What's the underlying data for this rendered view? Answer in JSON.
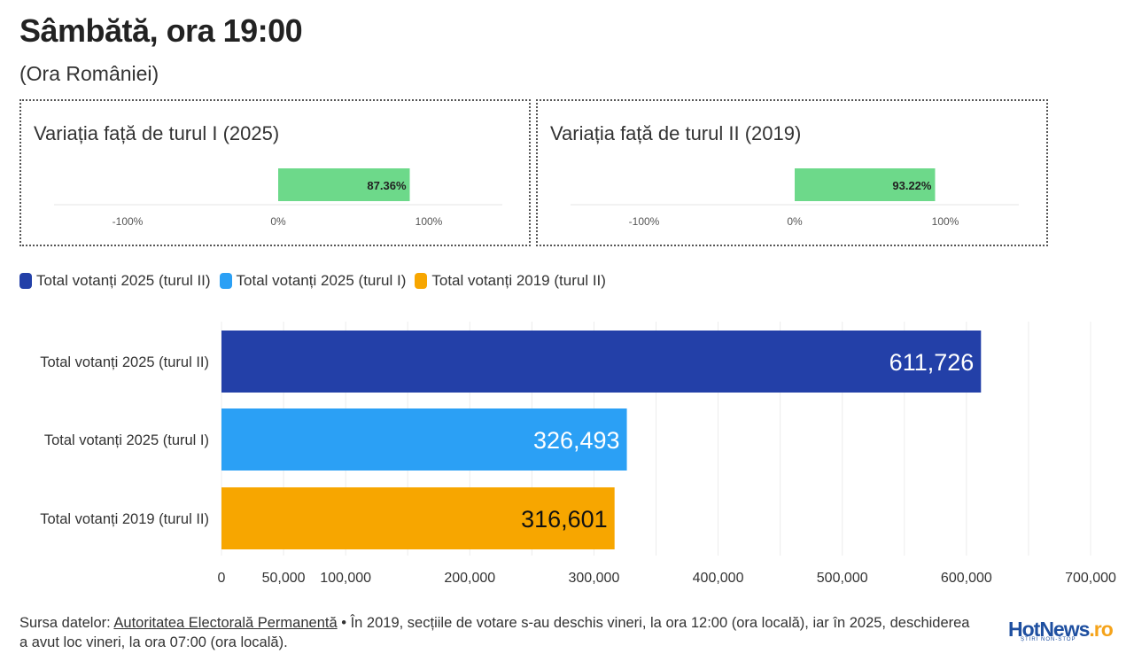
{
  "header": {
    "title": "Sâmbătă, ora 19:00",
    "subtitle": "(Ora României)"
  },
  "variations": [
    {
      "title": "Variația față de turul I (2025)",
      "value": 87.36,
      "value_label": "87.36%",
      "ticks": [
        "-100%",
        "0%",
        "100%"
      ],
      "range": [
        -100,
        100
      ]
    },
    {
      "title": "Variația față de turul II (2019)",
      "value": 93.22,
      "value_label": "93.22%",
      "ticks": [
        "-100%",
        "0%",
        "100%"
      ],
      "range": [
        -100,
        100
      ]
    }
  ],
  "legend": [
    {
      "label": "Total votanți 2025 (turul II)",
      "color": "#2340a8"
    },
    {
      "label": "Total votanți 2025 (turul I)",
      "color": "#2ba0f5"
    },
    {
      "label": "Total votanți 2019 (turul II)",
      "color": "#f7a600"
    }
  ],
  "chart_data": {
    "type": "bar",
    "orientation": "horizontal",
    "categories": [
      "Total votanți 2025 (turul II)",
      "Total votanți 2025 (turul I)",
      "Total votanți 2019 (turul II)"
    ],
    "values": [
      611726,
      326493,
      316601
    ],
    "value_labels": [
      "611,726",
      "326,493",
      "316,601"
    ],
    "colors": [
      "#2340a8",
      "#2ba0f5",
      "#f7a600"
    ],
    "label_colors": [
      "#ffffff",
      "#ffffff",
      "#111111"
    ],
    "xlim": [
      0,
      700000
    ],
    "xticks": [
      0,
      50000,
      100000,
      200000,
      300000,
      400000,
      500000,
      600000,
      700000
    ],
    "xtick_labels": [
      "0",
      "50,000",
      "100,000",
      "200,000",
      "300,000",
      "400,000",
      "500,000",
      "600,000",
      "700,000"
    ],
    "grid": true
  },
  "footer": {
    "prefix": "Sursa datelor: ",
    "source_link": "Autoritatea Electorală Permanentă",
    "note": " • În 2019, secțiile de votare s-au deschis vineri, la ora 12:00 (ora locală), iar în 2025, deschiderea a avut loc vineri, la ora 07:00 (ora locală).",
    "logo_text": "HotNews",
    "logo_suffix": ".ro",
    "logo_tagline": "ȘTIRI NON-STOP"
  }
}
